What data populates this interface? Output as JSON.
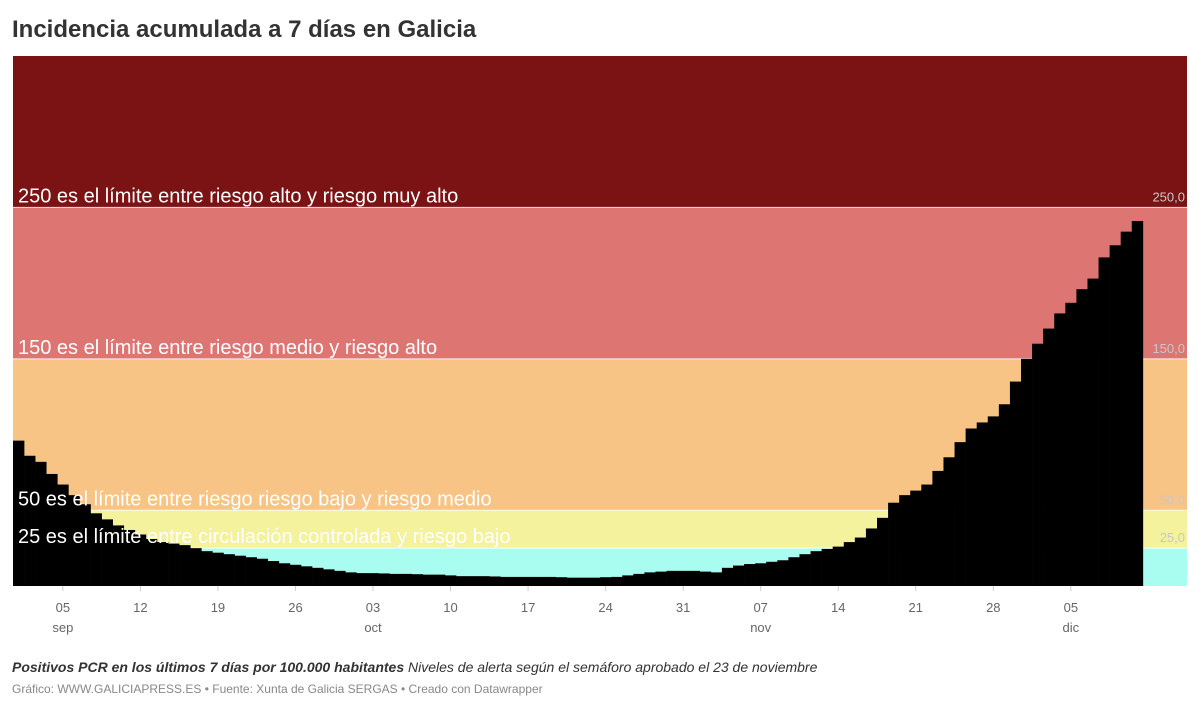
{
  "chart_data": {
    "type": "bar",
    "title": "Incidencia acumulada a 7 días en Galicia",
    "note_bold": "Positivos PCR en los últimos 7 días por 100.000 habitantes",
    "note": "Niveles de alerta según el semáforo aprobado el 23 de noviembre",
    "source": "Gráfico: WWW.GALICIAPRESS.ES • Fuente: Xunta de Galicia SERGAS • Creado con Datawrapper",
    "color": "#000000",
    "categories": [
      "09-01",
      "09-02",
      "09-03",
      "09-04",
      "09-05",
      "09-06",
      "09-07",
      "09-08",
      "09-09",
      "09-10",
      "09-11",
      "09-12",
      "09-13",
      "09-14",
      "09-15",
      "09-16",
      "09-17",
      "09-18",
      "09-19",
      "09-20",
      "09-21",
      "09-22",
      "09-23",
      "09-24",
      "09-25",
      "09-26",
      "09-27",
      "09-28",
      "09-29",
      "09-30",
      "10-01",
      "10-02",
      "10-03",
      "10-04",
      "10-05",
      "10-06",
      "10-07",
      "10-08",
      "10-09",
      "10-10",
      "10-11",
      "10-12",
      "10-13",
      "10-14",
      "10-15",
      "10-16",
      "10-17",
      "10-18",
      "10-19",
      "10-20",
      "10-21",
      "10-22",
      "10-23",
      "10-24",
      "10-25",
      "10-26",
      "10-27",
      "10-28",
      "10-29",
      "10-30",
      "10-31",
      "11-01",
      "11-02",
      "11-03",
      "11-04",
      "11-05",
      "11-06",
      "11-07",
      "11-08",
      "11-09",
      "11-10",
      "11-11",
      "11-12",
      "11-13",
      "11-14",
      "11-15",
      "11-16",
      "11-17",
      "11-18",
      "11-19",
      "11-20",
      "11-21",
      "11-22",
      "11-23",
      "11-24",
      "11-25",
      "11-26",
      "11-27",
      "11-28",
      "11-29",
      "11-30",
      "12-01",
      "12-02",
      "12-03",
      "12-04",
      "12-05",
      "12-06",
      "12-07",
      "12-08",
      "12-09",
      "12-10",
      "12-11"
    ],
    "values": [
      96,
      86,
      82,
      74,
      67,
      60,
      54,
      48,
      44,
      40,
      37,
      34,
      31,
      29,
      28,
      27,
      25,
      23,
      22,
      21,
      20,
      19,
      18,
      16.5,
      15,
      14,
      13,
      12,
      11,
      10,
      9,
      8.5,
      8.5,
      8.3,
      8,
      8,
      7.8,
      7.5,
      7.5,
      7,
      6.5,
      6.5,
      6.5,
      6.3,
      6,
      6,
      6,
      6,
      6,
      5.8,
      5.5,
      5.5,
      5.5,
      5.8,
      6,
      7,
      8,
      9,
      9.5,
      10,
      10,
      10,
      9.5,
      9,
      12,
      13.5,
      14.5,
      15,
      16,
      17,
      19,
      21,
      23,
      24.5,
      26,
      29,
      32,
      38,
      45,
      55,
      60,
      63,
      67,
      76,
      85,
      95,
      104,
      108,
      112,
      120,
      135,
      150,
      160,
      170,
      180,
      187,
      196,
      203,
      217,
      225,
      234,
      241
    ],
    "ylim": [
      0,
      350
    ],
    "yticks": [
      {
        "value": 25,
        "label": "25,0"
      },
      {
        "value": 50,
        "label": "50,0"
      },
      {
        "value": 150,
        "label": "150,0"
      },
      {
        "value": 250,
        "label": "250,0"
      }
    ],
    "bands": [
      {
        "range": [
          0,
          25
        ],
        "color": "#a8fdf0"
      },
      {
        "range": [
          25,
          50
        ],
        "color": "#f4f29c"
      },
      {
        "range": [
          50,
          150
        ],
        "color": "#f8c485"
      },
      {
        "range": [
          150,
          250
        ],
        "color": "#dd7573"
      },
      {
        "range": [
          250,
          350
        ],
        "color": "#7b1314"
      }
    ],
    "annotations": [
      {
        "y": 250,
        "text": "250 es el límite entre riesgo alto y riesgo muy alto"
      },
      {
        "y": 150,
        "text": "150 es el límite entre riesgo medio y riesgo alto"
      },
      {
        "y": 50,
        "text": "50 es el límite entre riesgo riesgo bajo y riesgo medio"
      },
      {
        "y": 25,
        "text": "25 es el límite entre circulación controlada y riesgo bajo"
      }
    ],
    "xticks": [
      {
        "value": "09-05",
        "label": "05"
      },
      {
        "value": "09-12",
        "label": "12"
      },
      {
        "value": "09-19",
        "label": "19"
      },
      {
        "value": "09-26",
        "label": "26"
      },
      {
        "value": "10-03",
        "label": "03"
      },
      {
        "value": "10-10",
        "label": "10"
      },
      {
        "value": "10-17",
        "label": "17"
      },
      {
        "value": "10-24",
        "label": "24"
      },
      {
        "value": "10-31",
        "label": "31"
      },
      {
        "value": "11-07",
        "label": "07"
      },
      {
        "value": "11-14",
        "label": "14"
      },
      {
        "value": "11-21",
        "label": "21"
      },
      {
        "value": "11-28",
        "label": "28"
      },
      {
        "value": "12-05",
        "label": "05"
      }
    ],
    "xmonths": [
      {
        "value": "09-05",
        "label": "sep"
      },
      {
        "value": "10-03",
        "label": "oct"
      },
      {
        "value": "11-07",
        "label": "nov"
      },
      {
        "value": "12-05",
        "label": "dic"
      }
    ]
  }
}
